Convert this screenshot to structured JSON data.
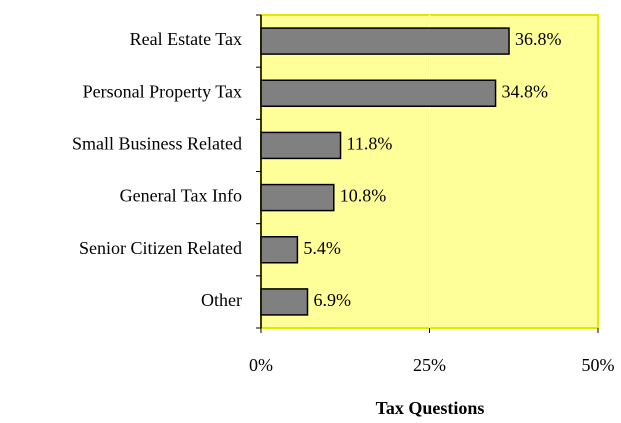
{
  "chart_data": {
    "type": "bar",
    "orientation": "horizontal",
    "categories": [
      "Real Estate Tax",
      "Personal Property Tax",
      "Small Business Related",
      "General Tax Info",
      "Senior Citizen Related",
      "Other"
    ],
    "values": [
      36.8,
      34.8,
      11.8,
      10.8,
      5.4,
      6.9
    ],
    "value_labels": [
      "36.8%",
      "34.8%",
      "11.8%",
      "10.8%",
      "5.4%",
      "6.9%"
    ],
    "color": "#808080",
    "xlabel": "Tax Questions",
    "xlim": [
      0,
      50
    ],
    "xticks": [
      {
        "value": 0,
        "label": "0%"
      },
      {
        "value": 25,
        "label": "25%"
      },
      {
        "value": 50,
        "label": "50%"
      }
    ],
    "grid": true
  }
}
